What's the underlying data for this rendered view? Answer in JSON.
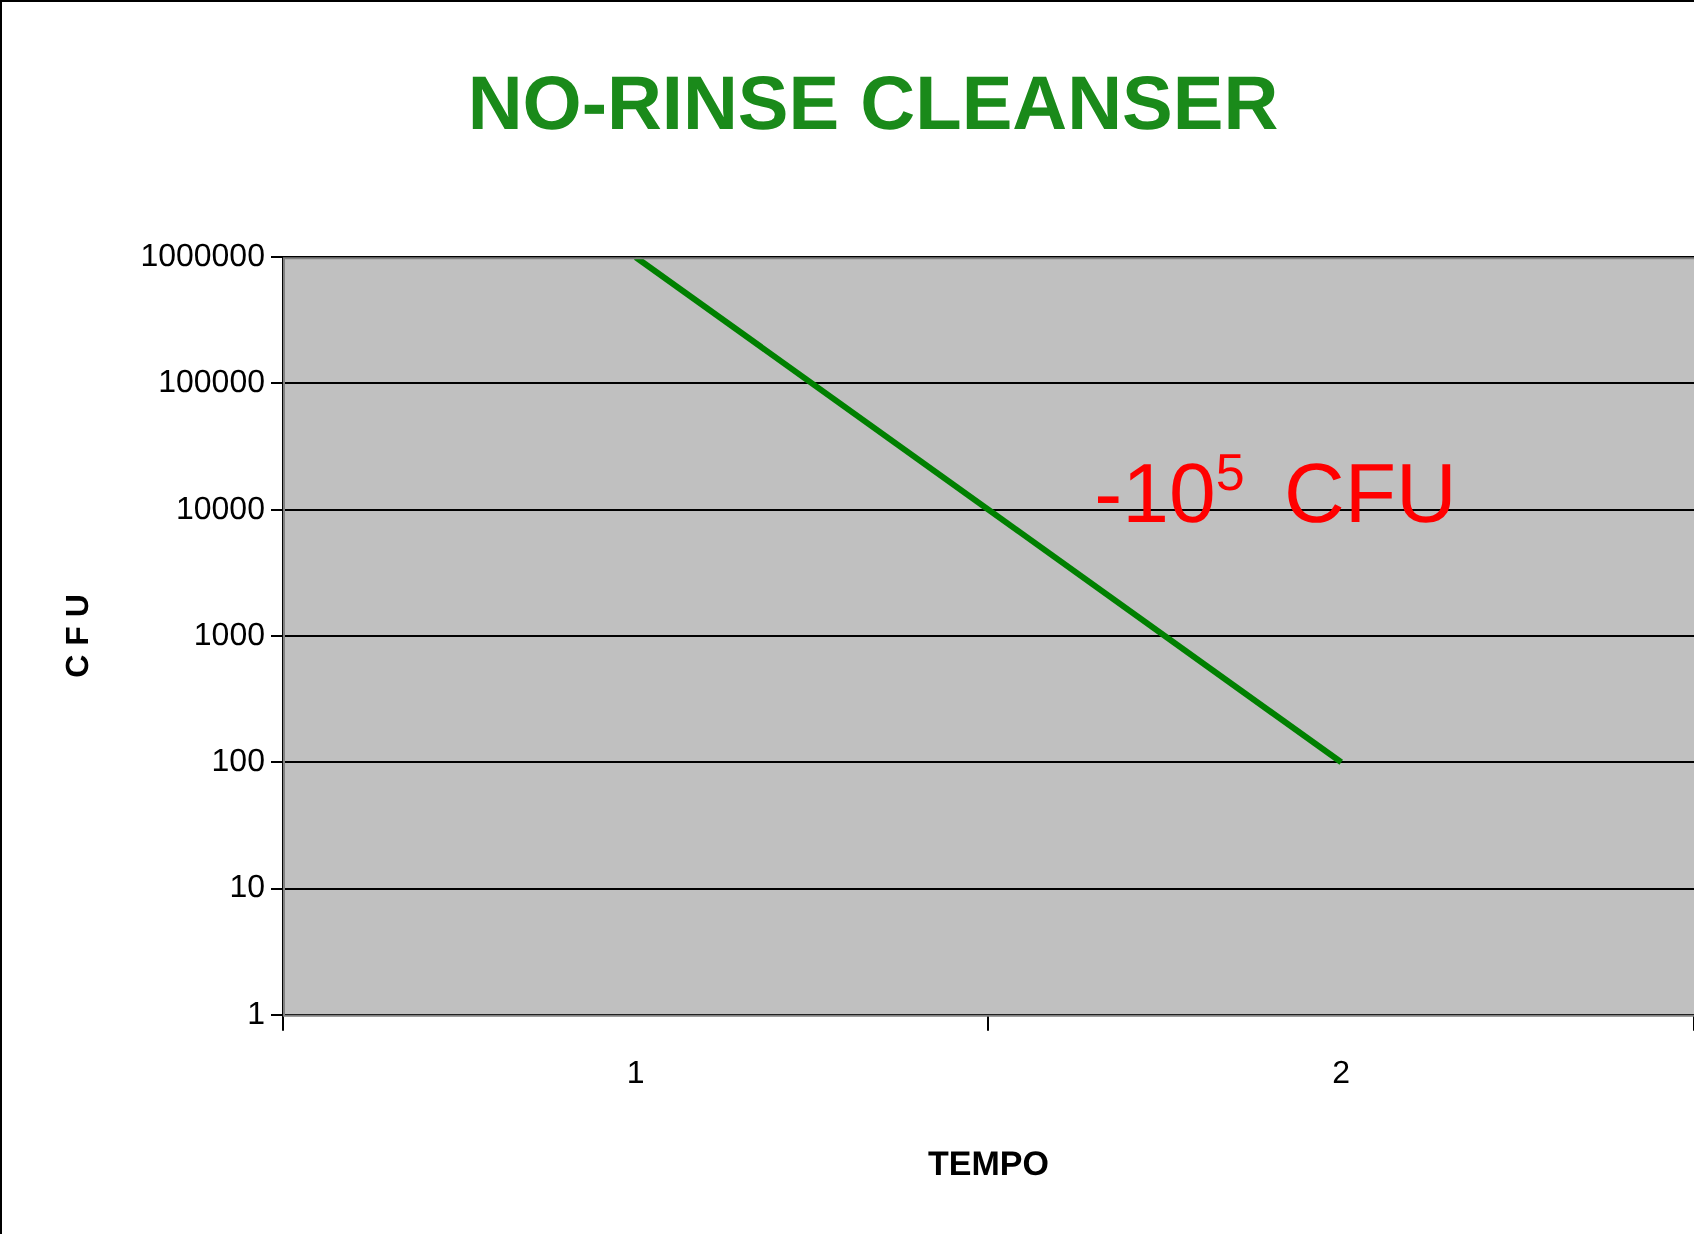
{
  "chart_data": {
    "type": "line",
    "title": "NO-RINSE CLEANSER",
    "xlabel": "TEMPO",
    "ylabel": "C F U",
    "categories": [
      "1",
      "2"
    ],
    "series": [
      {
        "color": "#008000",
        "values": [
          1000000,
          100
        ]
      }
    ],
    "log": true,
    "ylim": [
      1,
      1000000
    ],
    "yticks": [
      1,
      10,
      100,
      1000,
      10000,
      100000,
      1000000
    ],
    "grid": "y",
    "legend": false,
    "marker": "none",
    "line_style": "solid",
    "annotations": [
      "-10$^{5}$ CFU"
    ]
  }
}
